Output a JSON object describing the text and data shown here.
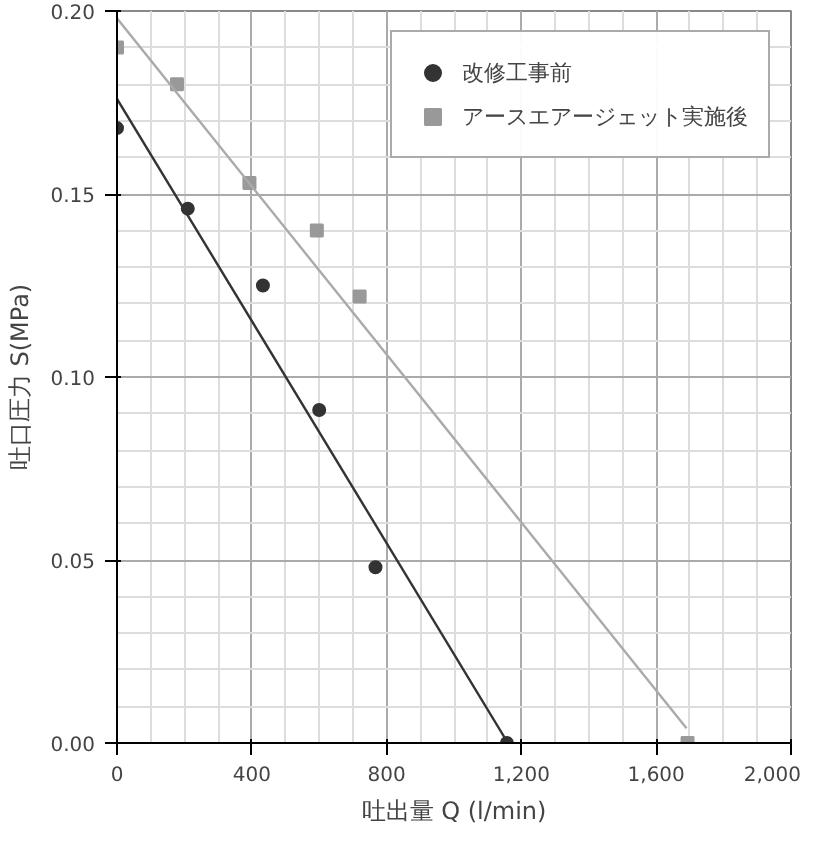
{
  "chart_data": {
    "type": "scatter",
    "xlabel": "吐出量 Q (l/min)",
    "ylabel": "吐口圧力 S(MPa)",
    "xlim": [
      0,
      2000
    ],
    "ylim": [
      0,
      0.2
    ],
    "xticks": [
      0,
      400,
      800,
      {
        "value": 1200,
        "label": "1,200"
      },
      {
        "value": 1600,
        "label": "1,600"
      },
      {
        "value": 2000,
        "label": "2,000"
      }
    ],
    "yticks": [
      {
        "value": 0,
        "label": "0.00"
      },
      0.05,
      {
        "value": 0.1,
        "label": "0.10"
      },
      0.15,
      {
        "value": 0.2,
        "label": "0.20"
      }
    ],
    "grid": true,
    "legend": "top right",
    "series": [
      {
        "name": "改修工事前",
        "color": "#333333",
        "marker": "circle",
        "x": [
          0,
          210,
          433,
          600,
          767,
          1157
        ],
        "values": [
          0.168,
          0.146,
          0.125,
          0.091,
          0.048,
          0.0
        ]
      },
      {
        "name": "アースエアージェット実施後",
        "color": "#999999",
        "marker": "square",
        "x": [
          0,
          178,
          393,
          593,
          720,
          1693
        ],
        "values": [
          0.19,
          0.18,
          0.153,
          0.14,
          0.122,
          0.0
        ]
      },
      {
        "type": "line",
        "color": "#333333",
        "x": [
          0,
          1160
        ],
        "values": [
          0.176,
          0.0
        ]
      },
      {
        "type": "line",
        "color": "#aaaaaa",
        "x": [
          0,
          1690
        ],
        "values": [
          0.198,
          0.004
        ]
      }
    ]
  }
}
